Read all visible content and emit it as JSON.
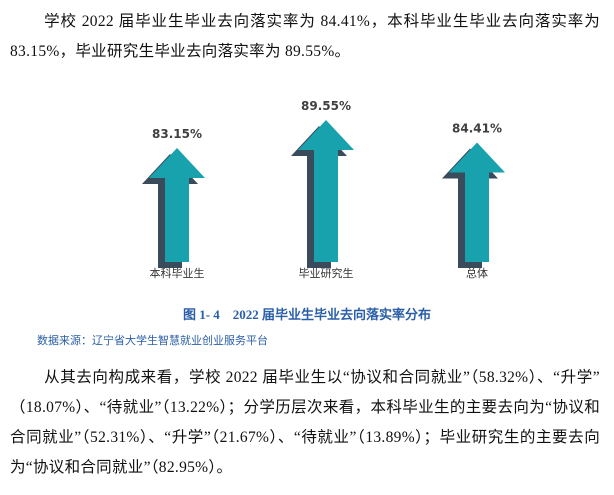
{
  "paragraphs": [
    "学校 2022 届毕业生毕业去向落实率为 84.41%，本科毕业生毕业去向落实率为 83.15%，毕业研究生毕业去向落实率为 89.55%。",
    "从其去向构成来看，学校 2022 届毕业生以“协议和合同就业”（58.32%）、“升学”（18.07%）、“待就业”（13.22%）；分学历层次来看，本科毕业生的主要去向为“协议和合同就业”（52.31%）、“升学”（21.67%）、“待就业”（13.89%）；毕业研究生的主要去向为“协议和合同就业”（82.95%）。"
  ],
  "chart": {
    "type": "arrow",
    "categories": [
      "本科毕业生",
      "毕业研究生",
      "总体"
    ],
    "values": [
      83.15,
      89.55,
      84.41
    ],
    "value_labels": [
      "83.15%",
      "89.55%",
      "84.41%"
    ],
    "color": "#17a2ad",
    "side_color": "#3a4b5c"
  },
  "caption": "图 1- 4    2022 届毕业生毕业去向落实率分布",
  "source": "数据来源：辽宁省大学生智慧就业创业服务平台"
}
